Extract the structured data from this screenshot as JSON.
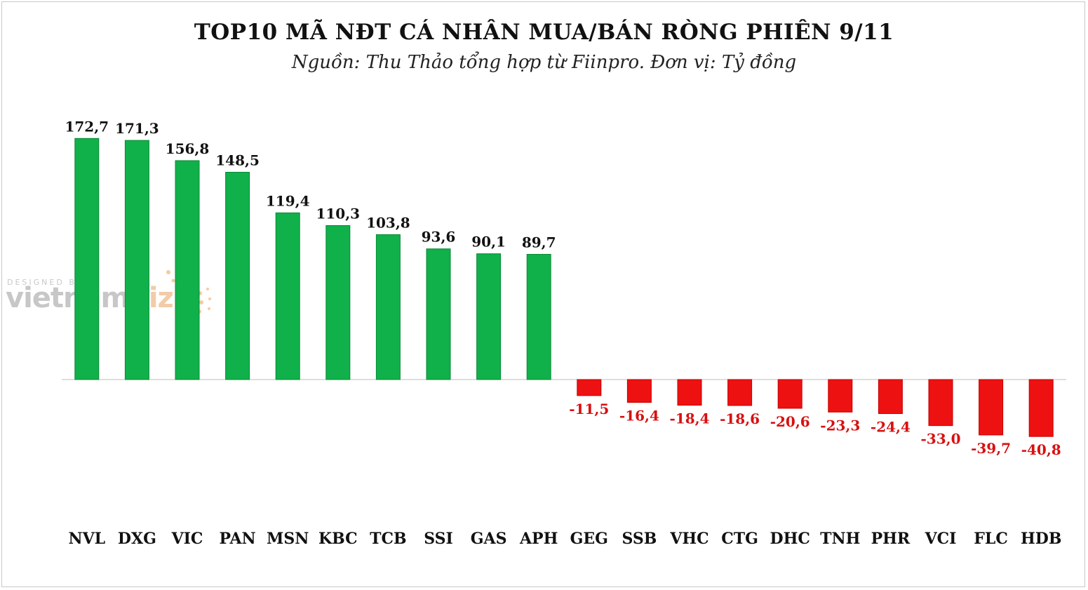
{
  "title": "TOP10 MÃ NĐT CÁ NHÂN MUA/BÁN RÒNG PHIÊN 9/11",
  "subtitle": "Nguồn: Thu Thảo tổng hợp từ Fiinpro. Đơn vị: Tỷ đồng",
  "watermark": {
    "designed_by": "DESIGNED BY",
    "brand_main": "vietnam",
    "brand_accent": "biz"
  },
  "colors": {
    "positive": "#10b04a",
    "negative": "#ee1111",
    "positive_label": "#111111",
    "negative_label": "#d81010",
    "axis": "#bdbdbd"
  },
  "chart_data": {
    "type": "bar",
    "title": "TOP10 MÃ NĐT CÁ NHÂN MUA/BÁN RÒNG PHIÊN 9/11",
    "subtitle": "Nguồn: Thu Thảo tổng hợp từ Fiinpro. Đơn vị: Tỷ đồng",
    "xlabel": "",
    "ylabel": "",
    "grid": false,
    "legend": "none",
    "categories": [
      "NVL",
      "DXG",
      "VIC",
      "PAN",
      "MSN",
      "KBC",
      "TCB",
      "SSI",
      "GAS",
      "APH",
      "GEG",
      "SSB",
      "VHC",
      "CTG",
      "DHC",
      "TNH",
      "PHR",
      "VCI",
      "FLC",
      "HDB"
    ],
    "values": [
      172.7,
      171.3,
      156.8,
      148.5,
      119.4,
      110.3,
      103.8,
      93.6,
      90.1,
      89.7,
      -11.5,
      -16.4,
      -18.4,
      -18.6,
      -20.6,
      -23.3,
      -24.4,
      -33.0,
      -39.7,
      -40.8
    ],
    "labels": [
      "172,7",
      "171,3",
      "156,8",
      "148,5",
      "119,4",
      "110,3",
      "103,8",
      "93,6",
      "90,1",
      "89,7",
      "-11,5",
      "-16,4",
      "-18,4",
      "-18,6",
      "-20,6",
      "-23,3",
      "-24,4",
      "-33,0",
      "-39,7",
      "-40,8"
    ]
  }
}
